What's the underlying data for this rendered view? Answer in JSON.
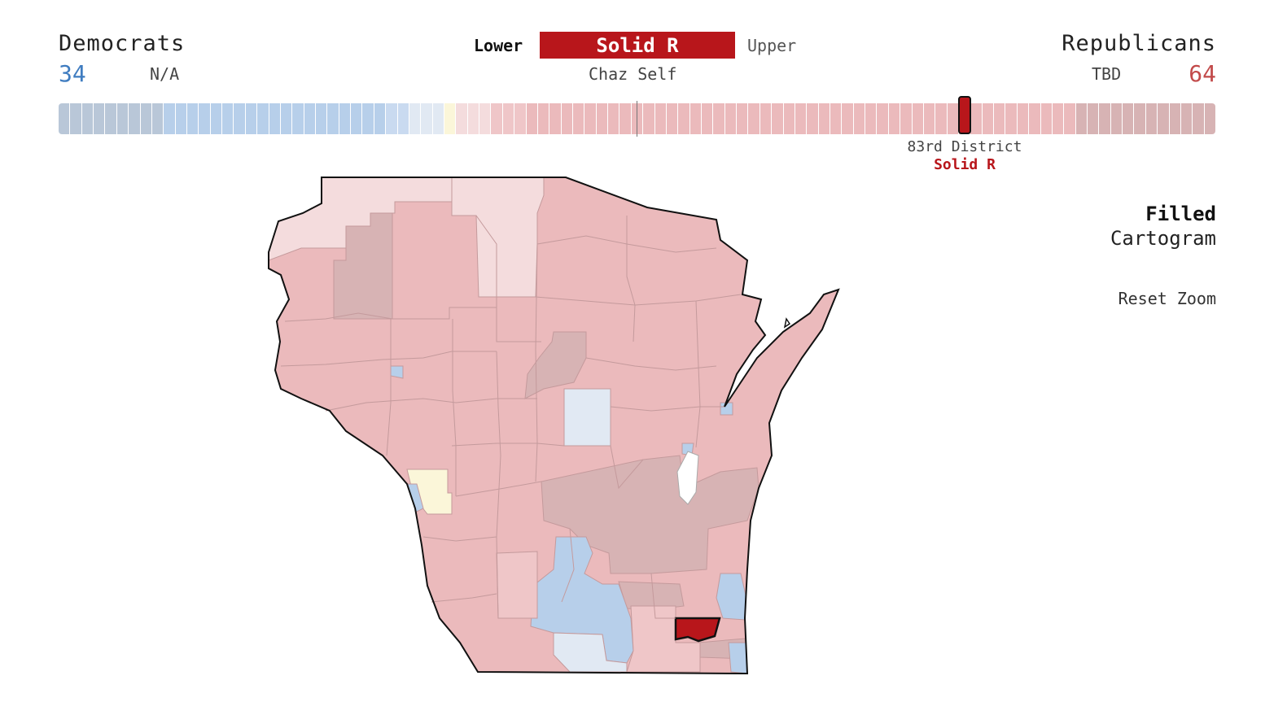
{
  "header": {
    "left_party": "Democrats",
    "right_party": "Republicans",
    "dem_count": "34",
    "rep_count": "64",
    "dem_candidate": "N/A",
    "rep_candidate": "TBD",
    "chamber_lower": "Lower",
    "chamber_upper": "Upper",
    "selected_rating": "Solid R",
    "incumbent": "Chaz Self"
  },
  "tooltip": {
    "district": "83rd District",
    "rating": "Solid R"
  },
  "controls": {
    "view_filled": "Filled",
    "view_cartogram": "Cartogram",
    "reset_zoom": "Reset Zoom"
  },
  "colors": {
    "safe_d": "#b9c7d8",
    "likely_d": "#b7cfea",
    "lean_d": "#c9daf0",
    "tilt_d": "#e1e9f3",
    "tossup": "#fbf6d9",
    "tilt_r": "#f4dcdd",
    "lean_r": "#efc6c8",
    "likely_r": "#ebbabc",
    "safe_r": "#d7b3b4",
    "selected": "#b8161b"
  },
  "seat_bar": {
    "segments": [
      {
        "rating": "safe_d",
        "count": 9
      },
      {
        "rating": "likely_d",
        "count": 19
      },
      {
        "rating": "lean_d",
        "count": 2
      },
      {
        "rating": "tilt_d",
        "count": 3
      },
      {
        "rating": "tossup",
        "count": 1
      },
      {
        "rating": "tilt_r",
        "count": 3
      },
      {
        "rating": "lean_r",
        "count": 3
      },
      {
        "rating": "likely_r",
        "count": 47
      },
      {
        "rating": "safe_r",
        "count": 12
      }
    ],
    "selected_seat": 77
  }
}
